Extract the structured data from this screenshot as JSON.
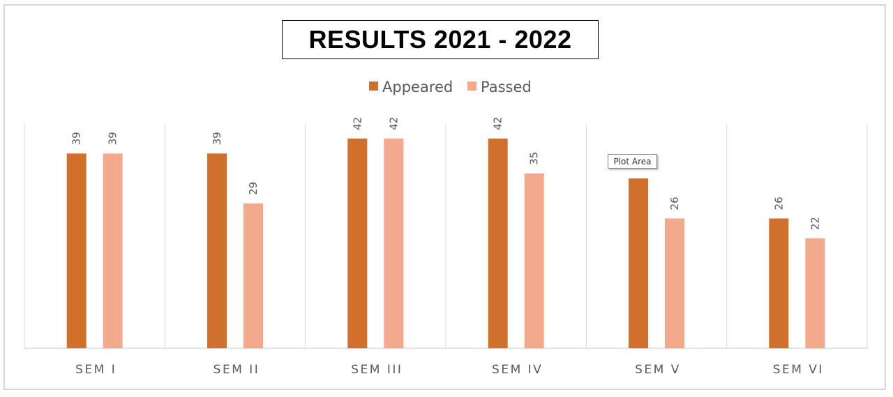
{
  "chart_data": {
    "type": "bar",
    "title": "RESULTS 2021 - 2022",
    "categories": [
      "SEM I",
      "SEM II",
      "SEM III",
      "SEM IV",
      "SEM V",
      "SEM VI"
    ],
    "series": [
      {
        "name": "Appeared",
        "color": "#d0702c",
        "values": [
          39,
          39,
          42,
          42,
          34,
          26
        ]
      },
      {
        "name": "Passed",
        "color": "#f2a98c",
        "values": [
          39,
          29,
          42,
          35,
          26,
          22
        ]
      }
    ],
    "data_labels": {
      "Appeared": [
        "39",
        "39",
        "42",
        "42",
        "",
        "26"
      ],
      "Passed": [
        "39",
        "29",
        "42",
        "35",
        "26",
        "22"
      ]
    },
    "xlabel": "",
    "ylabel": "",
    "ylim": [
      0,
      45
    ],
    "grid": "vertical category separators",
    "legend_position": "top-center"
  },
  "tooltip": {
    "label": "Plot Area"
  }
}
